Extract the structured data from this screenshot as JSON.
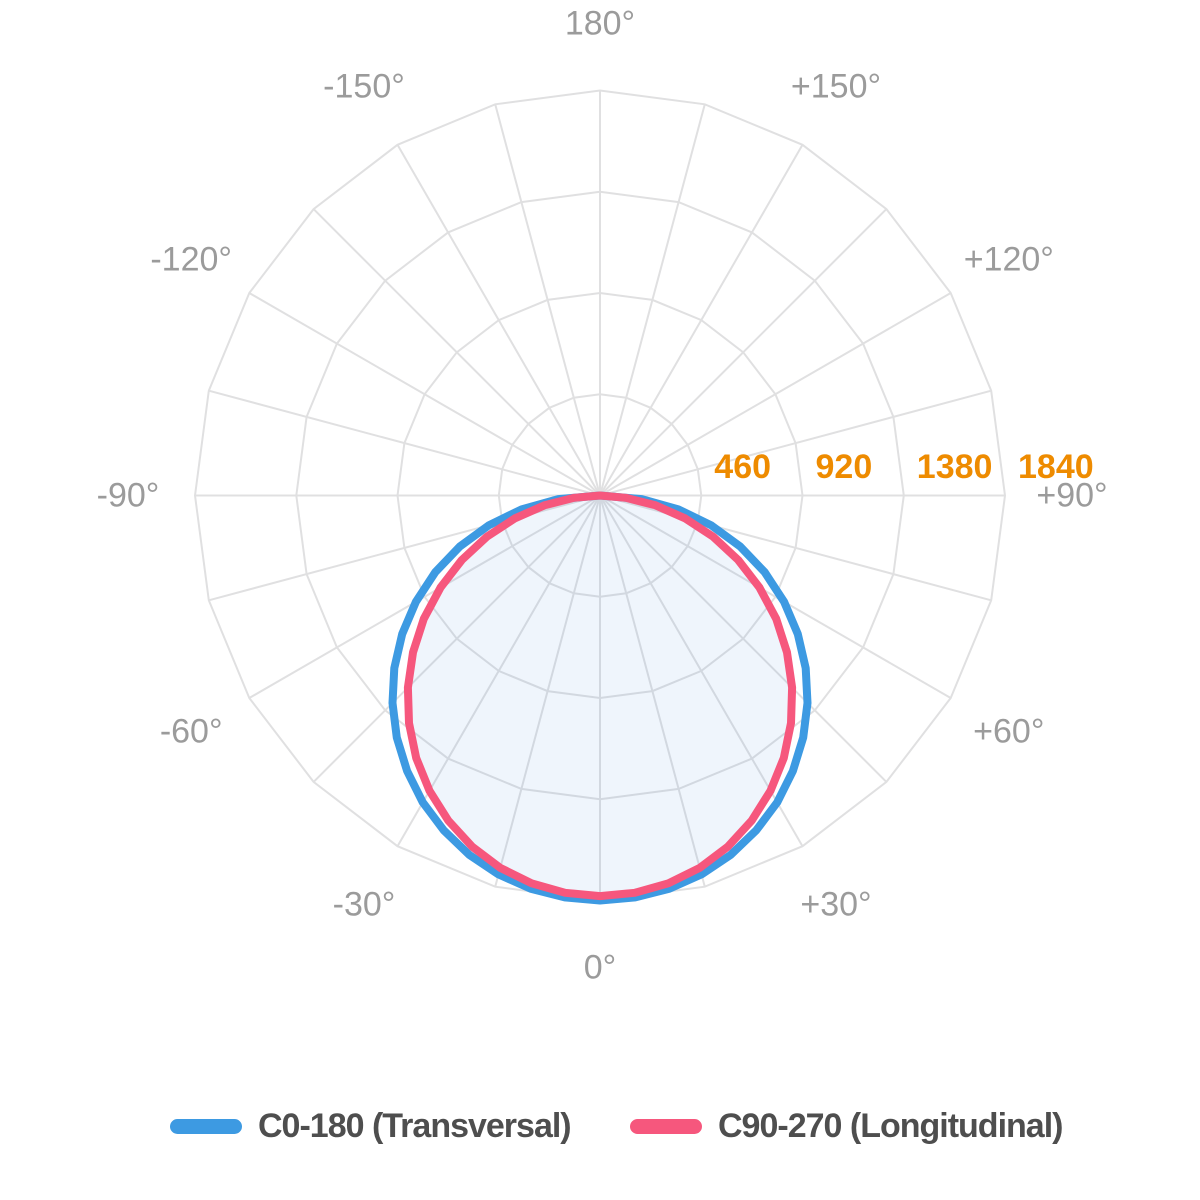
{
  "chart_data": {
    "type": "polar",
    "radial_max": 1840,
    "grid_step_deg": 15,
    "grid_color": "#E0E0E1",
    "angle_label_color": "#9B9B9B",
    "radial_label_color": "#EE8B00",
    "angle_labels": [
      {
        "deg": 180,
        "label": "180°"
      },
      {
        "deg": -150,
        "label": "-150°"
      },
      {
        "deg": 150,
        "label": "+150°"
      },
      {
        "deg": -120,
        "label": "-120°"
      },
      {
        "deg": 120,
        "label": "+120°"
      },
      {
        "deg": -90,
        "label": "-90°"
      },
      {
        "deg": 90,
        "label": "+90°"
      },
      {
        "deg": -60,
        "label": "-60°"
      },
      {
        "deg": 60,
        "label": "+60°"
      },
      {
        "deg": -30,
        "label": "-30°"
      },
      {
        "deg": 30,
        "label": "+30°"
      },
      {
        "deg": 0,
        "label": "0°"
      }
    ],
    "radial_ticks": [
      {
        "value": 460,
        "label": "460"
      },
      {
        "value": 920,
        "label": "920"
      },
      {
        "value": 1380,
        "label": "1380"
      },
      {
        "value": 1840,
        "label": "1840"
      }
    ],
    "angles": [
      -90,
      -85,
      -80,
      -75,
      -70,
      -65,
      -60,
      -55,
      -50,
      -45,
      -40,
      -35,
      -30,
      -25,
      -20,
      -15,
      -10,
      -5,
      0,
      5,
      10,
      15,
      20,
      25,
      30,
      35,
      40,
      45,
      50,
      55,
      60,
      65,
      70,
      75,
      80,
      85,
      90
    ],
    "series": [
      {
        "name": "C0-180 (Transversal)",
        "color": "#3D9AE2",
        "stroke_width": 8,
        "values": [
          0,
          190,
          361,
          523,
          678,
          826,
          966,
          1097,
          1220,
          1333,
          1436,
          1528,
          1610,
          1679,
          1737,
          1782,
          1814,
          1833,
          1840,
          1833,
          1814,
          1782,
          1737,
          1679,
          1610,
          1528,
          1436,
          1333,
          1220,
          1097,
          966,
          826,
          678,
          523,
          361,
          190,
          0
        ]
      },
      {
        "name": "C90-270 (Longitudinal)",
        "color": "#F6577D",
        "stroke_width": 8,
        "fill": "rgba(77,144,226,0.09)",
        "values": [
          0,
          118,
          256,
          400,
          547,
          693,
          837,
          977,
          1109,
          1234,
          1350,
          1456,
          1549,
          1630,
          1698,
          1751,
          1789,
          1812,
          1820,
          1812,
          1789,
          1751,
          1698,
          1630,
          1549,
          1456,
          1350,
          1234,
          1109,
          977,
          837,
          693,
          547,
          400,
          256,
          118,
          0
        ]
      }
    ]
  },
  "legend": {
    "items": [
      {
        "label": "C0-180 (Transversal)",
        "color": "#3D9AE2"
      },
      {
        "label": "C90-270 (Longitudinal)",
        "color": "#F6577D"
      }
    ]
  }
}
